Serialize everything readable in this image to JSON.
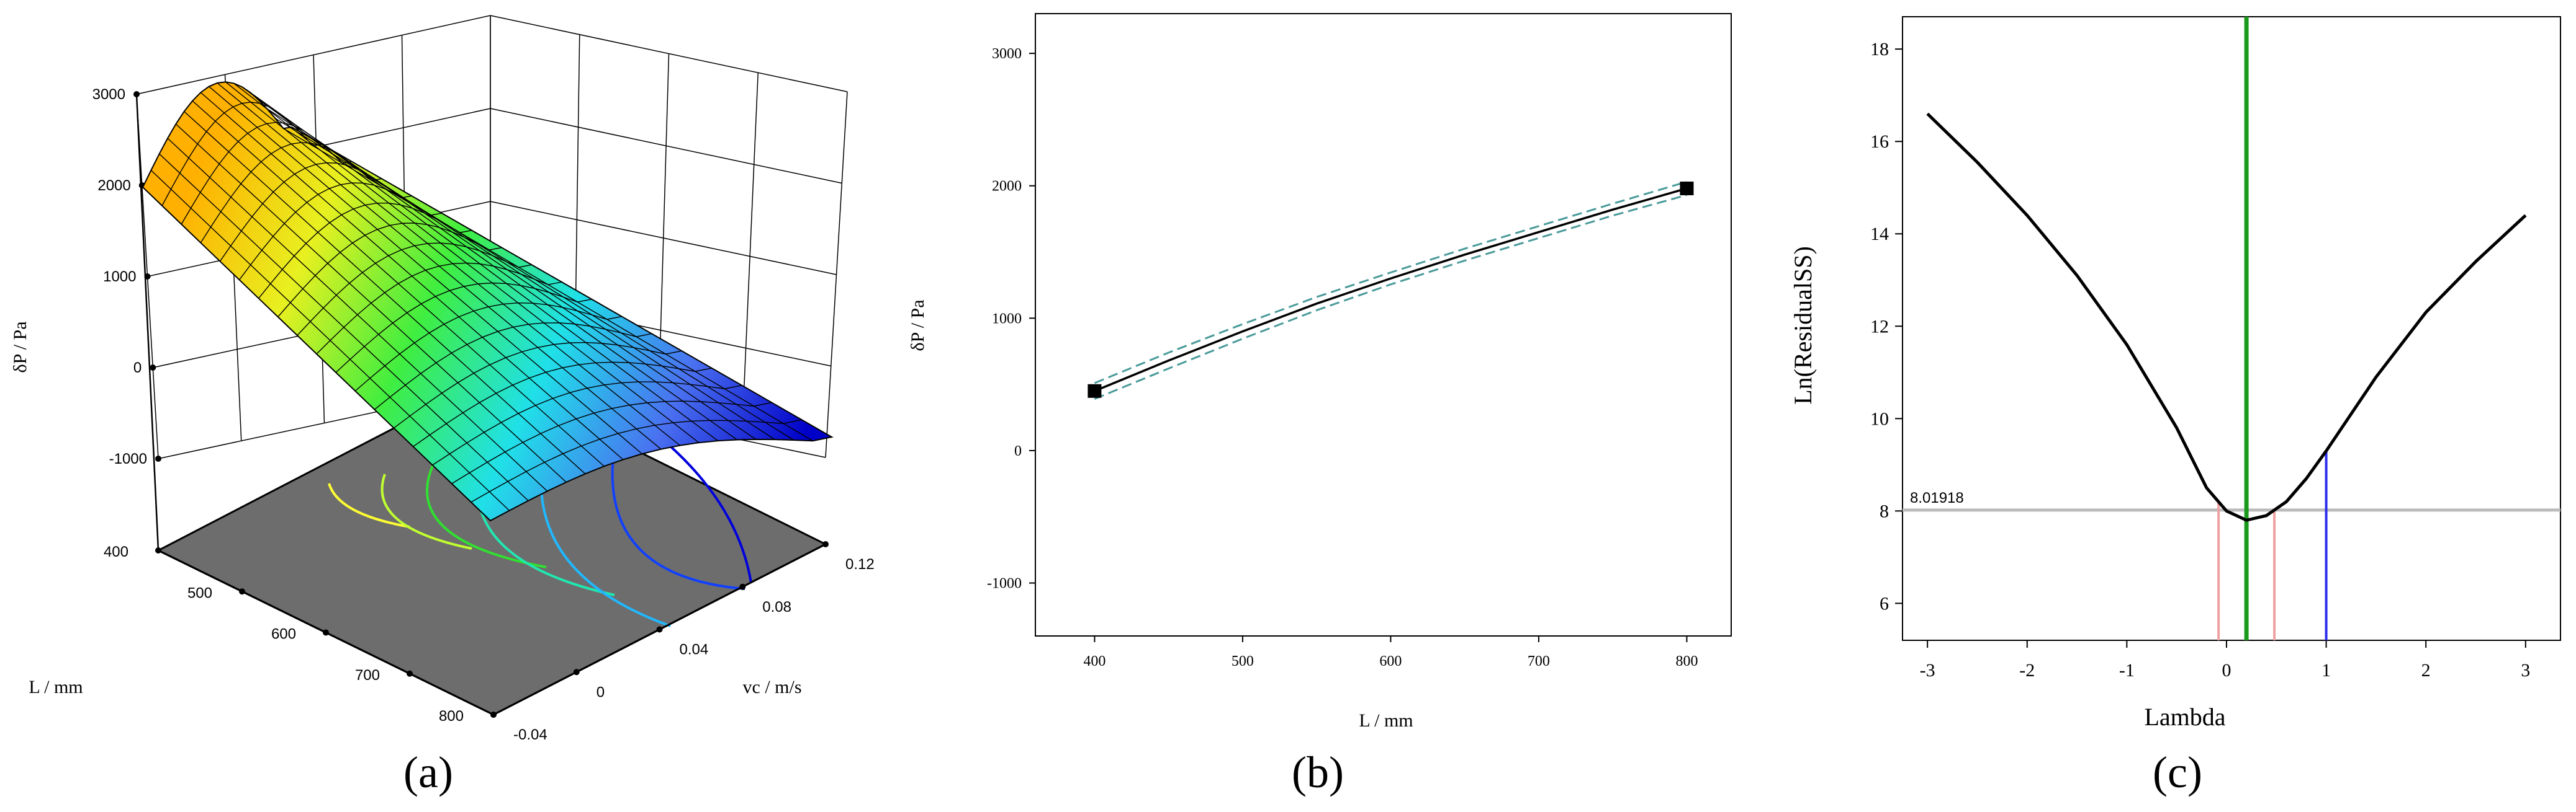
{
  "panels": [
    "(a)",
    "(b)",
    "(c)"
  ],
  "chart_data": [
    {
      "type": "surface",
      "zlabel": "δP / Pa",
      "xlabel": "L / mm",
      "ylabel": "vc  / m/s",
      "z_ticks": [
        -1000,
        0,
        1000,
        2000,
        3000
      ],
      "x_ticks": [
        400,
        500,
        600,
        700,
        800
      ],
      "y_ticks": [
        -0.04,
        0,
        0.04,
        0.08,
        0.12
      ],
      "xlim": [
        400,
        800
      ],
      "ylim": [
        -0.04,
        0.12
      ],
      "zlim": [
        -1000,
        3000
      ],
      "colormap": [
        "#0000ff",
        "#00e0ff",
        "#00ff80",
        "#ffff00",
        "#ff9900"
      ],
      "floor_color": "#6d6d6d",
      "contours": [
        {
          "color": "#ffff33"
        },
        {
          "color": "#c0ff30"
        },
        {
          "color": "#30e030"
        },
        {
          "color": "#20e8b0"
        },
        {
          "color": "#20b8ff"
        },
        {
          "color": "#1040ff"
        },
        {
          "color": "#0000dd"
        }
      ]
    },
    {
      "type": "line",
      "xlabel": "L / mm",
      "ylabel": "δP / Pa",
      "xlim": [
        360,
        830
      ],
      "ylim": [
        -1000,
        3000
      ],
      "x_ticks": [
        400,
        500,
        600,
        700,
        800
      ],
      "y_ticks": [
        -1000,
        0,
        1000,
        2000,
        3000
      ],
      "series": [
        {
          "role": "fit",
          "color": "#000000",
          "x": [
            400,
            450,
            500,
            550,
            600,
            650,
            700,
            750,
            800
          ],
          "y": [
            450,
            680,
            900,
            1110,
            1300,
            1480,
            1650,
            1820,
            1980
          ]
        },
        {
          "role": "ci-upper",
          "color": "#4a9a9a",
          "dash": true,
          "x": [
            400,
            450,
            500,
            550,
            600,
            650,
            700,
            750,
            800
          ],
          "y": [
            510,
            740,
            955,
            1160,
            1345,
            1525,
            1695,
            1865,
            2030
          ]
        },
        {
          "role": "ci-lower",
          "color": "#4a9a9a",
          "dash": true,
          "x": [
            400,
            450,
            500,
            550,
            600,
            650,
            700,
            750,
            800
          ],
          "y": [
            390,
            620,
            845,
            1060,
            1255,
            1435,
            1605,
            1775,
            1930
          ]
        }
      ],
      "markers": [
        {
          "x": 400,
          "y": 450
        },
        {
          "x": 800,
          "y": 1980
        }
      ]
    },
    {
      "type": "line",
      "xlabel": "Lambda",
      "ylabel": "Ln(ResidualSS)",
      "xlim": [
        -3.25,
        3.35
      ],
      "ylim": [
        5.2,
        18.7
      ],
      "x_ticks": [
        -3,
        -2,
        -1,
        0,
        1,
        2,
        3
      ],
      "y_ticks": [
        6,
        8,
        10,
        12,
        14,
        16,
        18
      ],
      "series": [
        {
          "role": "ln-residual-ss",
          "color": "#000000",
          "x": [
            -3,
            -2.5,
            -2,
            -1.5,
            -1,
            -0.5,
            -0.2,
            0,
            0.2,
            0.4,
            0.6,
            0.8,
            1,
            1.5,
            2,
            2.5,
            3
          ],
          "y": [
            16.6,
            15.55,
            14.4,
            13.1,
            11.6,
            9.8,
            8.5,
            8.0,
            7.8,
            7.9,
            8.2,
            8.7,
            9.3,
            10.9,
            12.3,
            13.4,
            14.4
          ]
        }
      ],
      "hline": {
        "y": 8.01918,
        "label": "8.01918",
        "color": "#bbbbbb"
      },
      "vlines": [
        {
          "x": 0.2,
          "color": "#1a9a1a",
          "to": "top"
        },
        {
          "x": -0.08,
          "color": "#f0a0a0",
          "to": "curve"
        },
        {
          "x": 0.48,
          "color": "#f0a0a0",
          "to": "curve"
        },
        {
          "x": 1.0,
          "color": "#2a2aee",
          "to": "curve"
        }
      ]
    }
  ]
}
